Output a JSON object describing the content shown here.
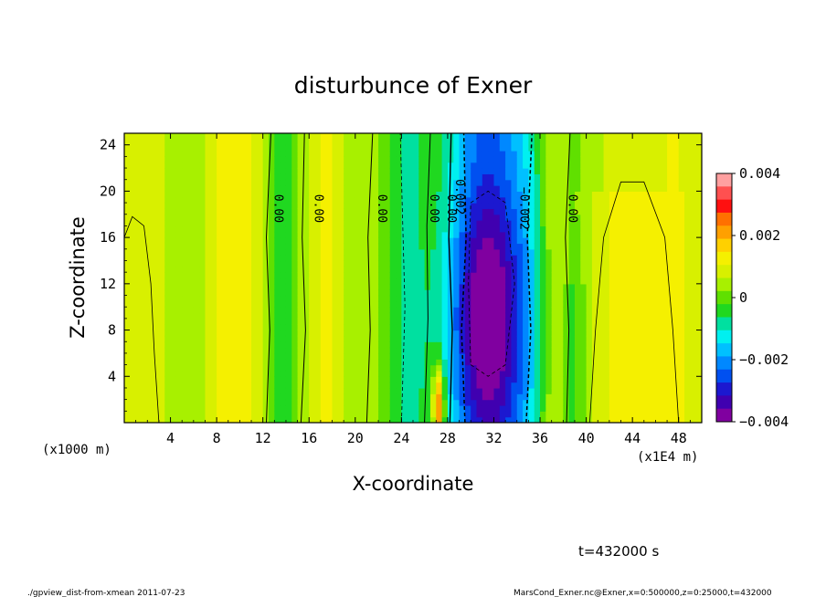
{
  "chart_data": {
    "type": "heatmap",
    "title": "disturbunce of Exner",
    "xlabel": "X-coordinate",
    "ylabel": "Z-coordinate",
    "x_unit_label": "(x1E4 m)",
    "y_unit_label": "(x1000 m)",
    "xlim": [
      0,
      50
    ],
    "ylim": [
      0,
      25
    ],
    "x_ticks": [
      "4",
      "8",
      "12",
      "16",
      "20",
      "24",
      "28",
      "32",
      "36",
      "40",
      "44",
      "48"
    ],
    "y_ticks": [
      "4",
      "8",
      "12",
      "16",
      "20",
      "24"
    ],
    "colorbar": {
      "range": [
        -0.004,
        0.004
      ],
      "tick_labels": [
        "0.004",
        "0.002",
        "0",
        "−0.002",
        "−0.004"
      ],
      "colors": [
        "#ffa0a0",
        "#ff5050",
        "#ff1010",
        "#ff7000",
        "#ffa000",
        "#ffd000",
        "#f5f000",
        "#d8f000",
        "#a8f000",
        "#60e000",
        "#20d820",
        "#00e0a0",
        "#00f0f0",
        "#00c0ff",
        "#0088ff",
        "#0050f0",
        "#1c18d0",
        "#4000b0",
        "#8000a0"
      ]
    },
    "contour_labels": [
      {
        "x": 13,
        "z": 18.5,
        "text": "0.00"
      },
      {
        "x": 16.5,
        "z": 18.5,
        "text": "0.00"
      },
      {
        "x": 22,
        "z": 18.5,
        "text": "0.00"
      },
      {
        "x": 26.5,
        "z": 18.5,
        "text": "0.00"
      },
      {
        "x": 28,
        "z": 18.5,
        "text": "0.00"
      },
      {
        "x": 28.7,
        "z": 19.5,
        "text": "0.002"
      },
      {
        "x": 34.3,
        "z": 18.5,
        "text": "−0.002"
      },
      {
        "x": 38.5,
        "z": 18.5,
        "text": "0.00"
      }
    ],
    "annotation_time": "t=432000 s"
  },
  "footer": {
    "left": "./gpview_dist-from-xmean  2011-07-23",
    "right": "MarsCond_Exner.nc@Exner,x=0:500000,z=0:25000,t=432000"
  }
}
